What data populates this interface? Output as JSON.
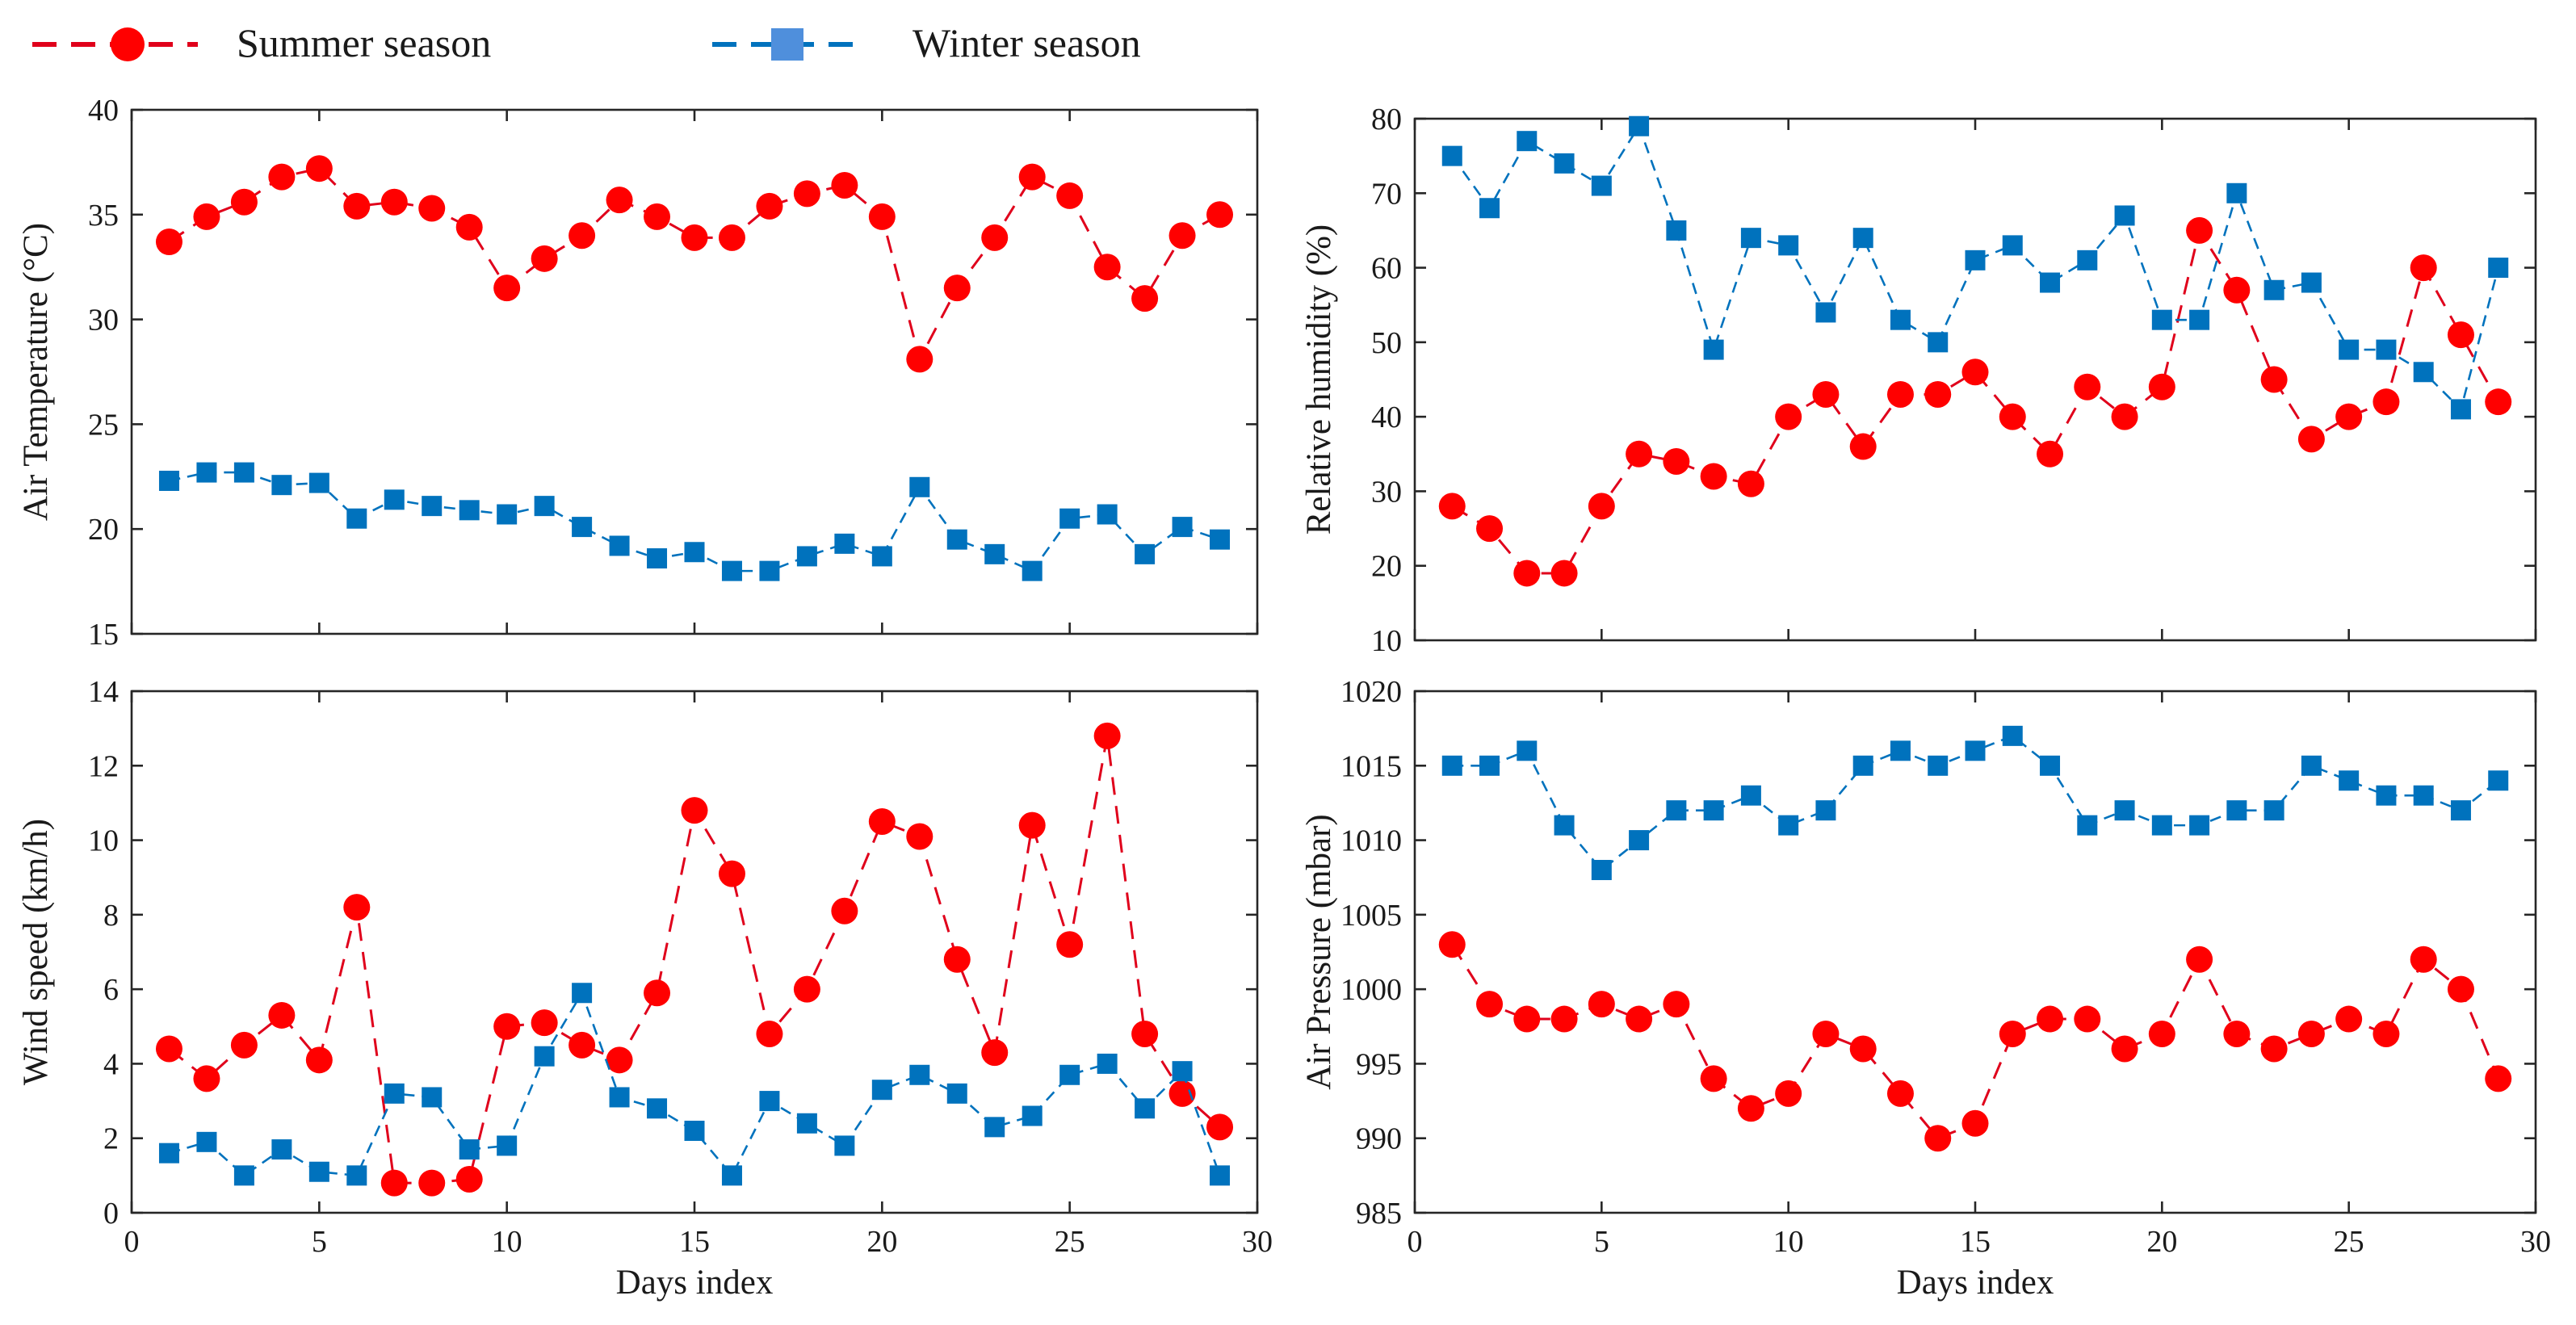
{
  "legend": {
    "summer_label": "Summer season",
    "winter_label": "Winter season"
  },
  "colors": {
    "summer": "#ff0000",
    "summer_line": "#e0001b",
    "winter": "#0072bd",
    "winter_legend_marker": "#4f8fdc"
  },
  "chart_data": [
    {
      "id": "air-temperature",
      "type": "line",
      "title": "",
      "xlabel": "",
      "ylabel": "Air Temperature (°C)",
      "xlim": [
        0,
        30
      ],
      "ylim": [
        15,
        40
      ],
      "xticks": [
        0,
        5,
        10,
        15,
        20,
        25,
        30
      ],
      "yticks": [
        15,
        20,
        25,
        30,
        35,
        40
      ],
      "show_xtick_labels": false,
      "x": [
        1,
        2,
        3,
        4,
        5,
        6,
        7,
        8,
        9,
        10,
        11,
        12,
        13,
        14,
        15,
        16,
        17,
        18,
        19,
        20,
        21,
        22,
        23,
        24,
        25,
        26,
        27,
        28,
        29
      ],
      "series": [
        {
          "name": "Summer season",
          "marker": "circle",
          "values": [
            33.7,
            34.9,
            35.6,
            36.8,
            37.2,
            35.4,
            35.6,
            35.3,
            34.4,
            31.5,
            32.9,
            34.0,
            35.7,
            34.9,
            33.9,
            33.9,
            35.4,
            36.0,
            36.4,
            34.9,
            28.1,
            31.5,
            33.9,
            36.8,
            35.9,
            32.5,
            31.0,
            34.0,
            35.0
          ]
        },
        {
          "name": "Winter season",
          "marker": "square",
          "values": [
            22.3,
            22.7,
            22.7,
            22.1,
            22.2,
            20.5,
            21.4,
            21.1,
            20.9,
            20.7,
            21.1,
            20.1,
            19.2,
            18.6,
            18.9,
            18.0,
            18.0,
            18.7,
            19.3,
            18.7,
            22.0,
            19.5,
            18.8,
            18.0,
            20.5,
            20.7,
            18.8,
            20.1,
            19.5
          ]
        }
      ]
    },
    {
      "id": "relative-humidity",
      "type": "line",
      "title": "",
      "xlabel": "",
      "ylabel": "Relative humidity (%)",
      "xlim": [
        0,
        30
      ],
      "ylim": [
        10,
        80
      ],
      "xticks": [
        0,
        5,
        10,
        15,
        20,
        25,
        30
      ],
      "yticks": [
        10,
        20,
        30,
        40,
        50,
        60,
        70,
        80
      ],
      "show_xtick_labels": false,
      "x": [
        1,
        2,
        3,
        4,
        5,
        6,
        7,
        8,
        9,
        10,
        11,
        12,
        13,
        14,
        15,
        16,
        17,
        18,
        19,
        20,
        21,
        22,
        23,
        24,
        25,
        26,
        27,
        28,
        29
      ],
      "series": [
        {
          "name": "Summer season",
          "marker": "circle",
          "values": [
            28,
            25,
            19,
            19,
            28,
            35,
            34,
            32,
            31,
            40,
            43,
            36,
            43,
            43,
            46,
            40,
            35,
            44,
            40,
            44,
            65,
            57,
            45,
            37,
            40,
            42,
            60,
            51,
            42
          ]
        },
        {
          "name": "Winter season",
          "marker": "square",
          "values": [
            75,
            68,
            77,
            74,
            71,
            79,
            65,
            49,
            64,
            63,
            54,
            64,
            53,
            50,
            61,
            63,
            58,
            61,
            67,
            53,
            53,
            70,
            57,
            58,
            49,
            49,
            46,
            41,
            60
          ]
        }
      ]
    },
    {
      "id": "wind-speed",
      "type": "line",
      "title": "",
      "xlabel": "Days index",
      "ylabel": "Wind speed (km/h)",
      "xlim": [
        0,
        30
      ],
      "ylim": [
        0,
        14
      ],
      "xticks": [
        0,
        5,
        10,
        15,
        20,
        25,
        30
      ],
      "yticks": [
        0,
        2,
        4,
        6,
        8,
        10,
        12,
        14
      ],
      "show_xtick_labels": true,
      "x": [
        1,
        2,
        3,
        4,
        5,
        6,
        7,
        8,
        9,
        10,
        11,
        12,
        13,
        14,
        15,
        16,
        17,
        18,
        19,
        20,
        21,
        22,
        23,
        24,
        25,
        26,
        27,
        28,
        29
      ],
      "series": [
        {
          "name": "Summer season",
          "marker": "circle",
          "values": [
            4.4,
            3.6,
            4.5,
            5.3,
            4.1,
            8.2,
            0.8,
            0.8,
            0.9,
            5.0,
            5.1,
            4.5,
            4.1,
            5.9,
            10.8,
            9.1,
            4.8,
            6.0,
            8.1,
            10.5,
            10.1,
            6.8,
            4.3,
            10.4,
            7.2,
            12.8,
            4.8,
            3.2,
            2.3
          ]
        },
        {
          "name": "Winter season",
          "marker": "square",
          "values": [
            1.6,
            1.9,
            1.0,
            1.7,
            1.1,
            1.0,
            3.2,
            3.1,
            1.7,
            1.8,
            4.2,
            5.9,
            3.1,
            2.8,
            2.2,
            1.0,
            3.0,
            2.4,
            1.8,
            3.3,
            3.7,
            3.2,
            2.3,
            2.6,
            3.7,
            4.0,
            2.8,
            3.8,
            1.0
          ]
        }
      ]
    },
    {
      "id": "air-pressure",
      "type": "line",
      "title": "",
      "xlabel": "Days index",
      "ylabel": "Air Pressure (mbar)",
      "xlim": [
        0,
        30
      ],
      "ylim": [
        985,
        1020
      ],
      "xticks": [
        0,
        5,
        10,
        15,
        20,
        25,
        30
      ],
      "yticks": [
        985,
        990,
        995,
        1000,
        1005,
        1010,
        1015,
        1020
      ],
      "show_xtick_labels": true,
      "x": [
        1,
        2,
        3,
        4,
        5,
        6,
        7,
        8,
        9,
        10,
        11,
        12,
        13,
        14,
        15,
        16,
        17,
        18,
        19,
        20,
        21,
        22,
        23,
        24,
        25,
        26,
        27,
        28,
        29
      ],
      "series": [
        {
          "name": "Summer season",
          "marker": "circle",
          "values": [
            1003,
            999,
            998,
            998,
            999,
            998,
            999,
            994,
            992,
            993,
            997,
            996,
            993,
            990,
            991,
            997,
            998,
            998,
            996,
            997,
            1002,
            997,
            996,
            997,
            998,
            997,
            1002,
            1000,
            994
          ]
        },
        {
          "name": "Winter season",
          "marker": "square",
          "values": [
            1015,
            1015,
            1016,
            1011,
            1008,
            1010,
            1012,
            1012,
            1013,
            1011,
            1012,
            1015,
            1016,
            1015,
            1016,
            1017,
            1015,
            1011,
            1012,
            1011,
            1011,
            1012,
            1012,
            1015,
            1014,
            1013,
            1013,
            1012,
            1014
          ]
        }
      ]
    }
  ]
}
